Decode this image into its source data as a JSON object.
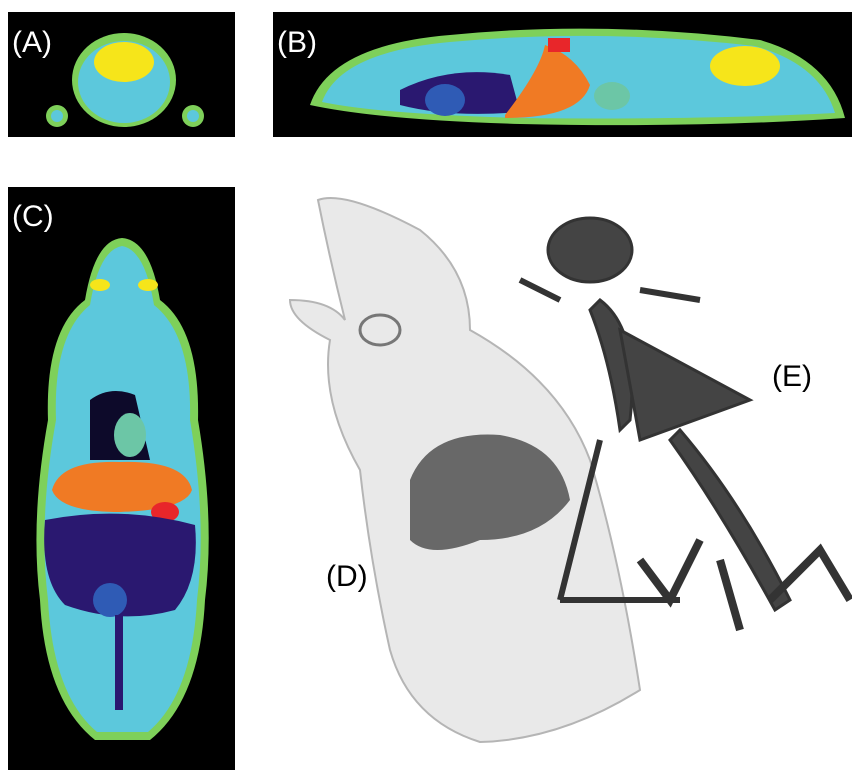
{
  "panels": [
    {
      "label": "(A)"
    },
    {
      "label": "(B)"
    },
    {
      "label": "(C)"
    },
    {
      "label": "(D)"
    },
    {
      "label": "(E)"
    }
  ]
}
